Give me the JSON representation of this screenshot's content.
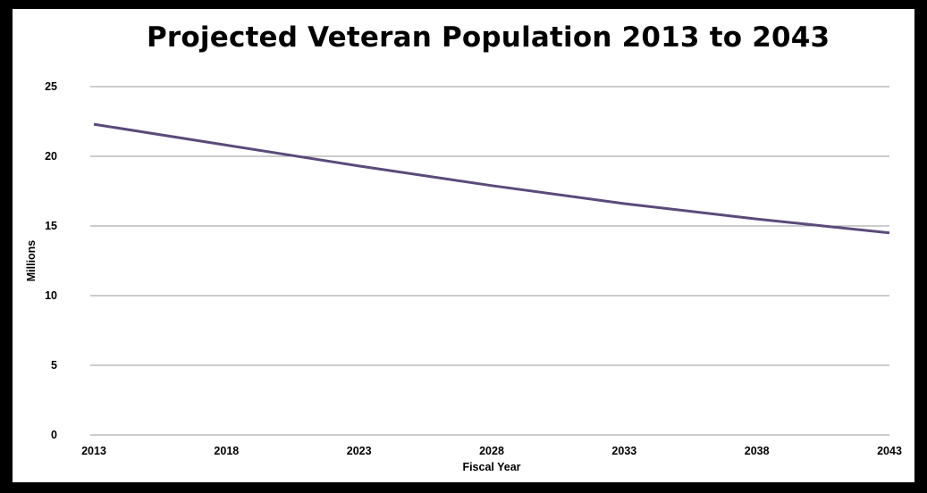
{
  "chart_data": {
    "type": "line",
    "title": "Projected Veteran Population 2013 to 2043",
    "xlabel": "Fiscal Year",
    "ylabel": "Millions",
    "x": [
      2013,
      2018,
      2023,
      2028,
      2033,
      2038,
      2043
    ],
    "xticks": [
      "2013",
      "2018",
      "2023",
      "2028",
      "2033",
      "2038",
      "2043"
    ],
    "yticks": [
      "0",
      "5",
      "10",
      "15",
      "20",
      "25"
    ],
    "ylim": [
      0,
      25
    ],
    "xlim": [
      2013,
      2043
    ],
    "grid": true,
    "legend": "none",
    "series": [
      {
        "values": [
          22.3,
          20.8,
          19.3,
          17.9,
          16.6,
          15.5,
          14.5
        ]
      }
    ],
    "colors": {
      "line": "#5b4a7a",
      "grid": "#9a9a9a",
      "frame": "#000000",
      "background": "#ffffff"
    }
  }
}
